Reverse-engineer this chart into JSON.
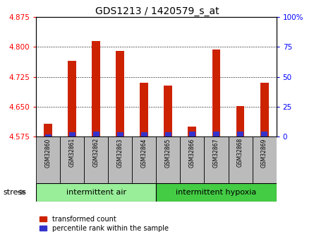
{
  "title": "GDS1213 / 1420579_s_at",
  "samples": [
    "GSM32860",
    "GSM32861",
    "GSM32862",
    "GSM32863",
    "GSM32864",
    "GSM32865",
    "GSM32866",
    "GSM32867",
    "GSM32868",
    "GSM32869"
  ],
  "transformed_count": [
    4.608,
    4.765,
    4.815,
    4.79,
    4.71,
    4.703,
    4.6,
    4.793,
    4.652,
    4.71
  ],
  "percentile_rank_pct": [
    2.0,
    3.5,
    4.0,
    3.5,
    3.5,
    3.5,
    4.5,
    4.0,
    4.0,
    4.0
  ],
  "ymin": 4.575,
  "ymax": 4.875,
  "yticks": [
    4.575,
    4.65,
    4.725,
    4.8,
    4.875
  ],
  "y2ticks": [
    0,
    25,
    50,
    75,
    100
  ],
  "bar_color_red": "#cc2200",
  "bar_color_blue": "#3333cc",
  "group1_label": "intermittent air",
  "group2_label": "intermittent hypoxia",
  "group_bg_light": "#99ee99",
  "group_bg_dark": "#44cc44",
  "sample_bg_color": "#bbbbbb",
  "stress_label": "stress",
  "legend1": "transformed count",
  "legend2": "percentile rank within the sample",
  "bar_width": 0.35,
  "title_fontsize": 10
}
